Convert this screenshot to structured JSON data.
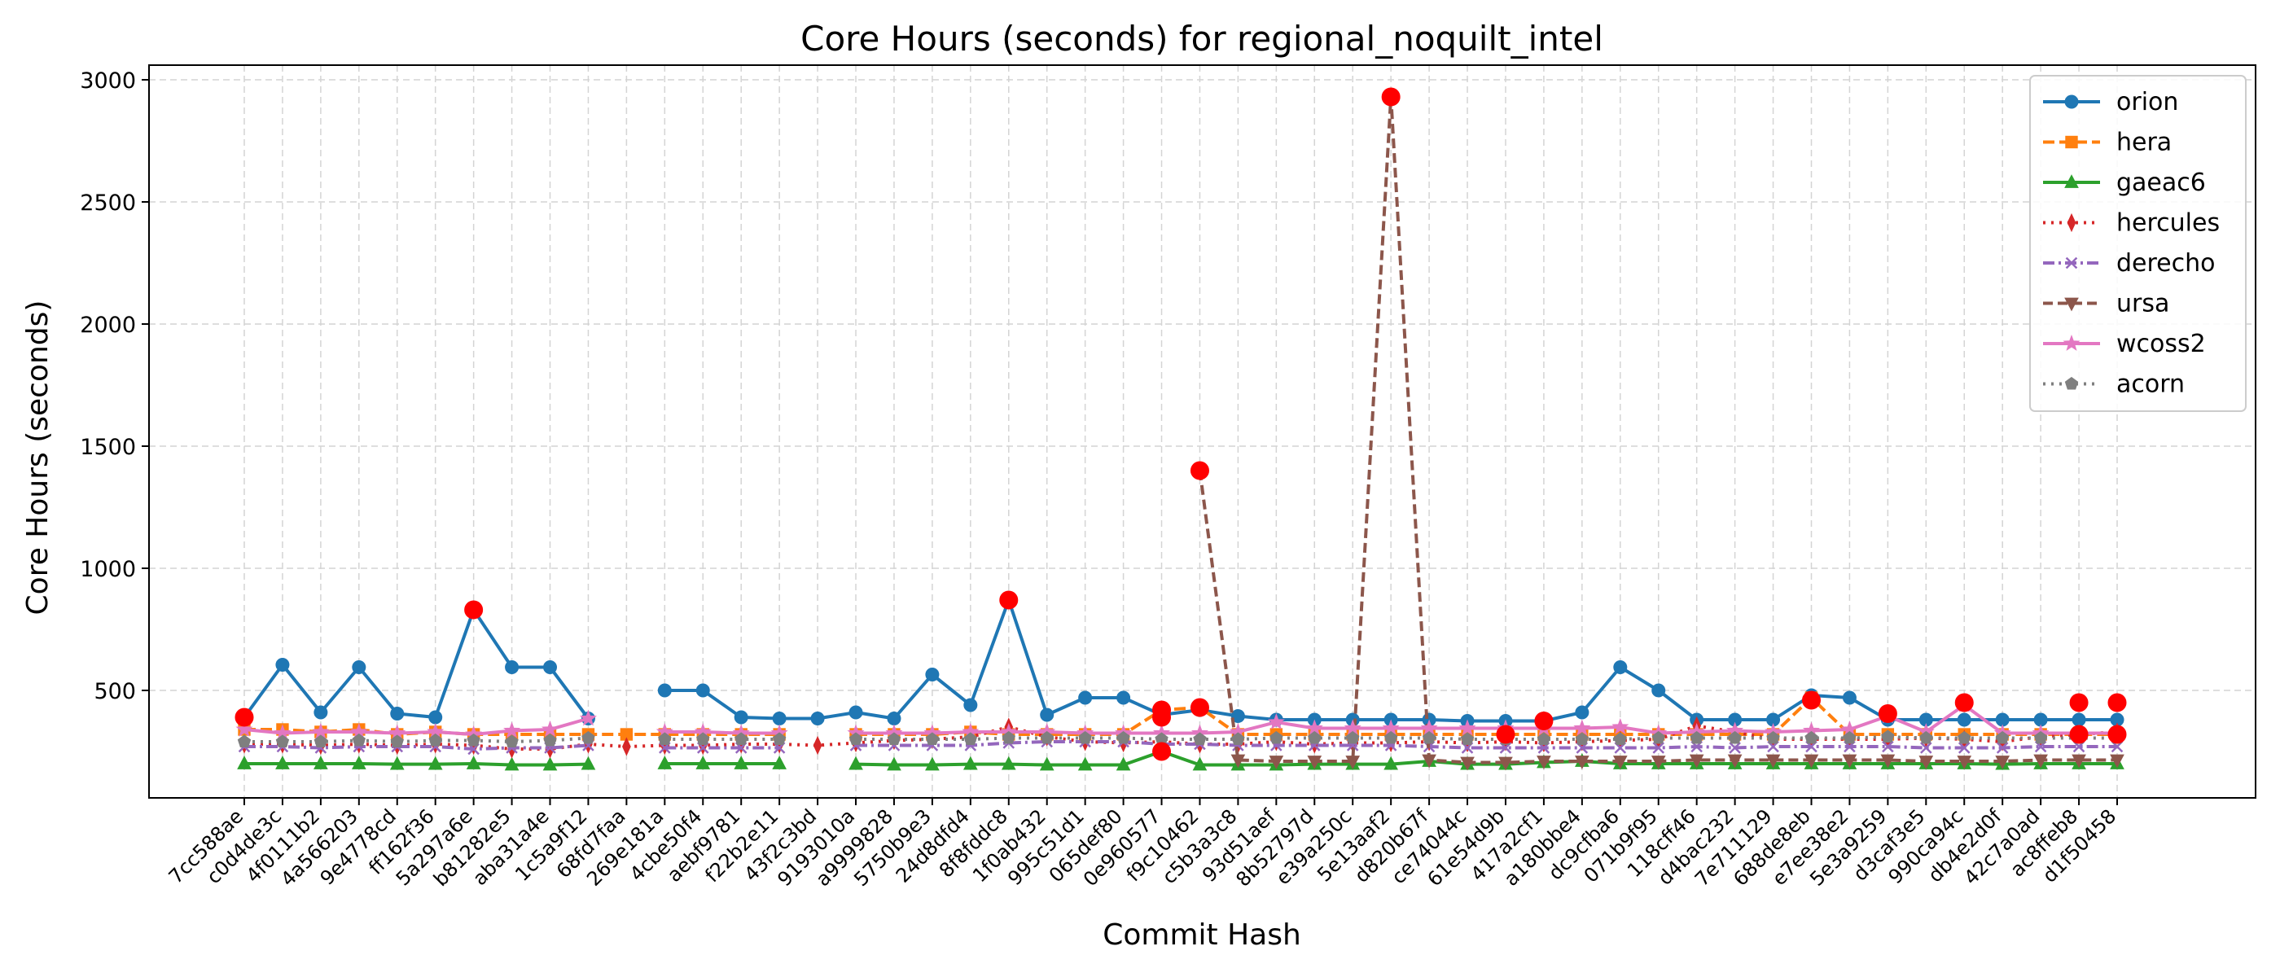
{
  "chart_data": {
    "type": "line",
    "title": "Core Hours (seconds) for regional_noquilt_intel",
    "xlabel": "Commit Hash",
    "ylabel": "Core Hours (seconds)",
    "ylim": [
      60,
      3060
    ],
    "yticks": [
      500,
      1000,
      1500,
      2000,
      2500,
      3000
    ],
    "grid": true,
    "legend_position": "top-right",
    "categories": [
      "7cc588ae",
      "c0d4de3c",
      "4f0111b2",
      "4a566203",
      "9e4778cd",
      "ff162f36",
      "5a297a6e",
      "b81282e5",
      "aba31a4e",
      "1c5a9f12",
      "68fd7faa",
      "269e181a",
      "4cbe50f4",
      "aebf9781",
      "f22b2e11",
      "43f2c3bd",
      "9193010a",
      "a9999828",
      "5750b9e3",
      "24d8dfd4",
      "8f8fddc8",
      "1f0ab432",
      "995c51d1",
      "065def80",
      "0e960577",
      "f9c10462",
      "c5b3a3c8",
      "93d51aef",
      "8b52797d",
      "e39a250c",
      "5e13aaf2",
      "d820b67f",
      "ce74044c",
      "61e54d9b",
      "417a2cf1",
      "a180bbe4",
      "dc9cfba6",
      "071b9f95",
      "118cff46",
      "d4bac232",
      "7e711129",
      "688de8eb",
      "e7ee38e2",
      "5e3a9259",
      "d3caf3e5",
      "990ca94c",
      "db4e2d0f",
      "42c7a0ad",
      "ac8ffeb8",
      "d1f50458"
    ],
    "series": [
      {
        "name": "orion",
        "color": "#1f77b4",
        "marker": "circle",
        "dash": "",
        "values": [
          390,
          605,
          410,
          595,
          405,
          390,
          830,
          595,
          595,
          385,
          null,
          500,
          500,
          390,
          385,
          385,
          410,
          385,
          565,
          440,
          870,
          400,
          470,
          470,
          400,
          420,
          395,
          380,
          380,
          380,
          380,
          380,
          375,
          375,
          375,
          410,
          595,
          500,
          380,
          380,
          380,
          480,
          470,
          380,
          380,
          380,
          380,
          380,
          380,
          380
        ]
      },
      {
        "name": "hera",
        "color": "#ff7f0e",
        "marker": "square",
        "dash": "14,6",
        "values": [
          340,
          340,
          330,
          340,
          320,
          330,
          320,
          320,
          320,
          320,
          320,
          320,
          320,
          320,
          320,
          null,
          320,
          320,
          320,
          330,
          320,
          320,
          320,
          320,
          420,
          430,
          320,
          320,
          320,
          320,
          320,
          320,
          320,
          320,
          320,
          320,
          320,
          320,
          320,
          320,
          320,
          470,
          320,
          320,
          320,
          320,
          320,
          320,
          320,
          320
        ]
      },
      {
        "name": "gaeac6",
        "color": "#2ca02c",
        "marker": "triangle",
        "dash": "",
        "values": [
          200,
          200,
          200,
          200,
          198,
          198,
          200,
          195,
          195,
          198,
          null,
          200,
          200,
          200,
          200,
          null,
          198,
          195,
          195,
          198,
          198,
          195,
          195,
          195,
          250,
          195,
          195,
          195,
          198,
          198,
          198,
          210,
          198,
          198,
          205,
          210,
          200,
          200,
          200,
          200,
          200,
          200,
          200,
          200,
          200,
          200,
          198,
          200,
          200,
          200
        ]
      },
      {
        "name": "hercules",
        "color": "#d62728",
        "marker": "diamond",
        "dash": "3,7",
        "values": [
          280,
          280,
          275,
          280,
          275,
          280,
          275,
          260,
          260,
          280,
          270,
          275,
          275,
          280,
          280,
          275,
          285,
          295,
          300,
          310,
          350,
          310,
          290,
          285,
          290,
          280,
          280,
          290,
          280,
          285,
          285,
          290,
          285,
          290,
          285,
          290,
          295,
          300,
          355,
          330,
          300,
          300,
          300,
          300,
          305,
          300,
          290,
          310,
          320,
          330
        ]
      },
      {
        "name": "derecho",
        "color": "#9467bd",
        "marker": "x",
        "dash": "14,5,3,5",
        "values": [
          270,
          270,
          265,
          270,
          270,
          270,
          260,
          265,
          265,
          275,
          null,
          265,
          265,
          265,
          265,
          null,
          275,
          275,
          275,
          275,
          285,
          290,
          290,
          290,
          280,
          280,
          275,
          275,
          275,
          275,
          275,
          270,
          265,
          265,
          265,
          265,
          265,
          265,
          270,
          265,
          270,
          270,
          270,
          270,
          265,
          265,
          265,
          270,
          270,
          270
        ]
      },
      {
        "name": "ursa",
        "color": "#8c564b",
        "marker": "triangle-down",
        "dash": "12,6",
        "values": [
          null,
          null,
          null,
          null,
          null,
          null,
          null,
          null,
          null,
          null,
          null,
          null,
          null,
          null,
          null,
          null,
          null,
          null,
          null,
          null,
          null,
          null,
          null,
          null,
          null,
          1400,
          215,
          210,
          210,
          210,
          2930,
          215,
          205,
          205,
          210,
          210,
          210,
          210,
          215,
          215,
          215,
          215,
          215,
          215,
          210,
          210,
          210,
          215,
          215,
          215
        ]
      },
      {
        "name": "wcoss2",
        "color": "#e377c2",
        "marker": "star",
        "dash": "",
        "values": [
          340,
          325,
          330,
          330,
          325,
          330,
          320,
          335,
          340,
          385,
          null,
          330,
          330,
          325,
          325,
          null,
          325,
          325,
          325,
          330,
          330,
          330,
          325,
          325,
          325,
          325,
          330,
          370,
          345,
          345,
          345,
          345,
          345,
          345,
          345,
          345,
          350,
          325,
          330,
          335,
          330,
          335,
          340,
          395,
          330,
          440,
          325,
          325,
          325,
          325
        ]
      },
      {
        "name": "acorn",
        "color": "#7f7f7f",
        "marker": "pentagon",
        "dash": "3,7",
        "values": [
          290,
          290,
          290,
          295,
          290,
          295,
          295,
          290,
          295,
          305,
          null,
          300,
          300,
          300,
          300,
          null,
          300,
          300,
          300,
          300,
          305,
          305,
          305,
          305,
          300,
          300,
          300,
          305,
          305,
          305,
          305,
          305,
          300,
          300,
          300,
          300,
          300,
          305,
          305,
          305,
          305,
          305,
          305,
          310,
          305,
          305,
          305,
          305,
          305,
          305
        ]
      }
    ],
    "anomalies": [
      {
        "x": "7cc588ae",
        "y": 390
      },
      {
        "x": "5a297a6e",
        "y": 830
      },
      {
        "x": "8f8fddc8",
        "y": 870
      },
      {
        "x": "0e960577",
        "y": 250
      },
      {
        "x": "0e960577",
        "y": 390
      },
      {
        "x": "0e960577",
        "y": 420
      },
      {
        "x": "f9c10462",
        "y": 1400
      },
      {
        "x": "f9c10462",
        "y": 430
      },
      {
        "x": "5e13aaf2",
        "y": 2930
      },
      {
        "x": "61e54d9b",
        "y": 320
      },
      {
        "x": "417a2cf1",
        "y": 375
      },
      {
        "x": "688de8eb",
        "y": 460
      },
      {
        "x": "5e3a9259",
        "y": 405
      },
      {
        "x": "990ca94c",
        "y": 450
      },
      {
        "x": "ac8ffeb8",
        "y": 450
      },
      {
        "x": "ac8ffeb8",
        "y": 320
      },
      {
        "x": "d1f50458",
        "y": 450
      },
      {
        "x": "d1f50458",
        "y": 320
      }
    ]
  }
}
